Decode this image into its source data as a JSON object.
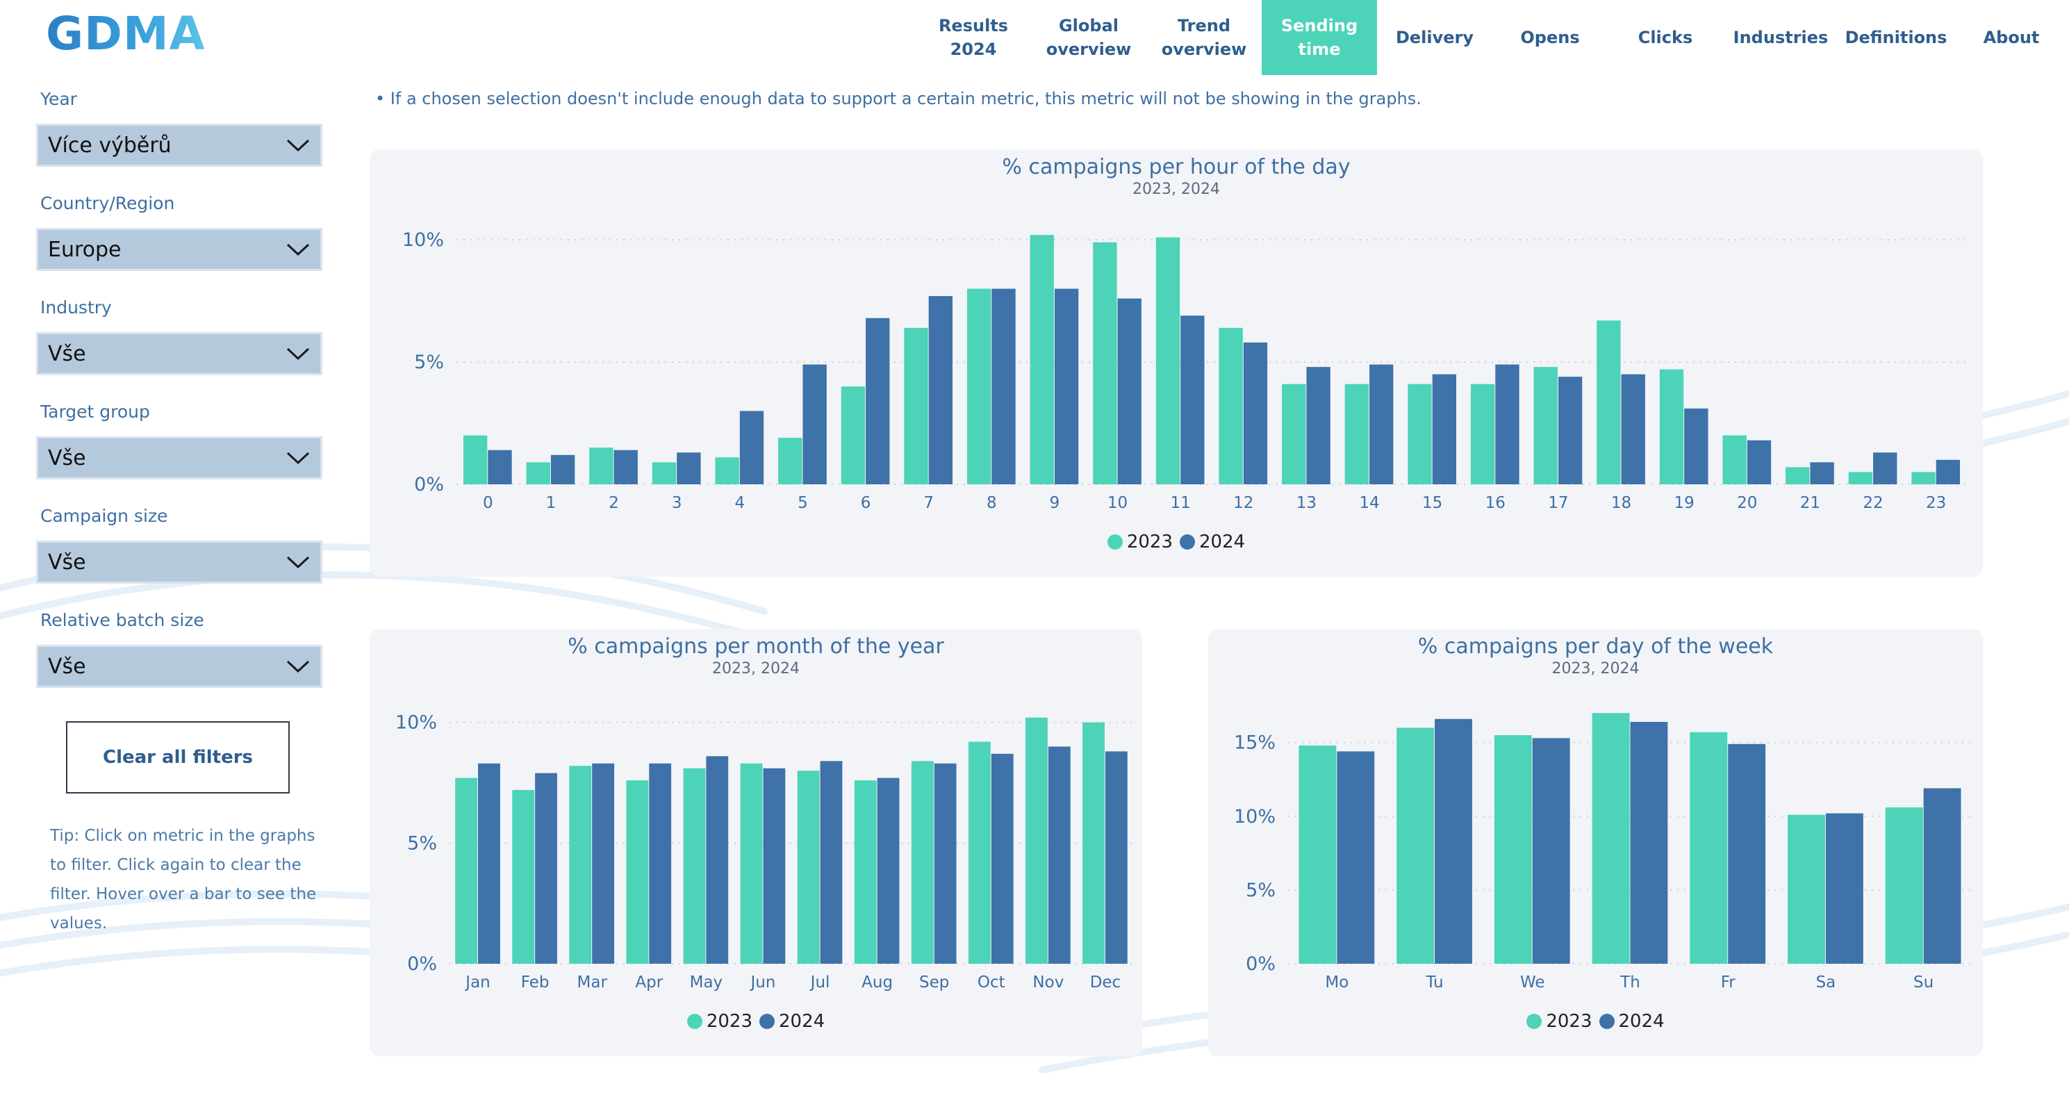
{
  "app": {
    "logo": "GDMA"
  },
  "nav": [
    {
      "label": "Results\n2024",
      "active": false
    },
    {
      "label": "Global\noverview",
      "active": false
    },
    {
      "label": "Trend\noverview",
      "active": false
    },
    {
      "label": "Sending\ntime",
      "active": true
    },
    {
      "label": "Delivery",
      "active": false
    },
    {
      "label": "Opens",
      "active": false
    },
    {
      "label": "Clicks",
      "active": false
    },
    {
      "label": "Industries",
      "active": false
    },
    {
      "label": "Definitions",
      "active": false
    },
    {
      "label": "About",
      "active": false
    }
  ],
  "filters": [
    {
      "label": "Year",
      "value": "Více výběrů"
    },
    {
      "label": "Country/Region",
      "value": "Europe"
    },
    {
      "label": "Industry",
      "value": "Vše"
    },
    {
      "label": "Target group",
      "value": "Vše"
    },
    {
      "label": "Campaign size",
      "value": "Vše"
    },
    {
      "label": "Relative batch size",
      "value": "Vše"
    }
  ],
  "clear_button": "Clear all filters",
  "tip": "Tip: Click on metric in the graphs to filter. Click again to clear the filter. Hover over a bar to see the values.",
  "note": "• If a chosen selection doesn't include enough data to support a certain metric, this metric will not be showing in the graphs.",
  "colors": {
    "series_2023": "#4cd3b8",
    "series_2024": "#3e72a8",
    "active_tab": "#4cd3b8"
  },
  "chart_data": [
    {
      "type": "bar",
      "title": "% campaigns per hour of the day",
      "subtitle": "2023, 2024",
      "categories": [
        "0",
        "1",
        "2",
        "3",
        "4",
        "5",
        "6",
        "7",
        "8",
        "9",
        "10",
        "11",
        "12",
        "13",
        "14",
        "15",
        "16",
        "17",
        "18",
        "19",
        "20",
        "21",
        "22",
        "23"
      ],
      "series": [
        {
          "name": "2023",
          "values": [
            2.0,
            0.9,
            1.5,
            0.9,
            1.1,
            1.9,
            4.0,
            6.4,
            8.0,
            10.2,
            9.9,
            10.1,
            6.4,
            4.1,
            4.1,
            4.1,
            4.1,
            4.8,
            6.7,
            4.7,
            2.0,
            0.7,
            0.5,
            0.5
          ]
        },
        {
          "name": "2024",
          "values": [
            1.4,
            1.2,
            1.4,
            1.3,
            3.0,
            4.9,
            6.8,
            7.7,
            8.0,
            8.0,
            7.6,
            6.9,
            5.8,
            4.8,
            4.9,
            4.5,
            4.9,
            4.4,
            4.5,
            3.1,
            1.8,
            0.9,
            1.3,
            1.0
          ]
        }
      ],
      "yticks": [
        "0%",
        "5%",
        "10%"
      ],
      "ylim": [
        0,
        11
      ]
    },
    {
      "type": "bar",
      "title": "% campaigns per month of the year",
      "subtitle": "2023, 2024",
      "categories": [
        "Jan",
        "Feb",
        "Mar",
        "Apr",
        "May",
        "Jun",
        "Jul",
        "Aug",
        "Sep",
        "Oct",
        "Nov",
        "Dec"
      ],
      "series": [
        {
          "name": "2023",
          "values": [
            7.7,
            7.2,
            8.2,
            7.6,
            8.1,
            8.3,
            8.0,
            7.6,
            8.4,
            9.2,
            10.2,
            10.0
          ]
        },
        {
          "name": "2024",
          "values": [
            8.3,
            7.9,
            8.3,
            8.3,
            8.6,
            8.1,
            8.4,
            7.7,
            8.3,
            8.7,
            9.0,
            8.8
          ]
        }
      ],
      "yticks": [
        "0%",
        "5%",
        "10%"
      ],
      "ylim": [
        0,
        11
      ]
    },
    {
      "type": "bar",
      "title": "% campaigns per day of the week",
      "subtitle": "2023, 2024",
      "categories": [
        "Mo",
        "Tu",
        "We",
        "Th",
        "Fr",
        "Sa",
        "Su"
      ],
      "series": [
        {
          "name": "2023",
          "values": [
            14.8,
            16.0,
            15.5,
            17.0,
            15.7,
            10.1,
            10.6
          ]
        },
        {
          "name": "2024",
          "values": [
            14.4,
            16.6,
            15.3,
            16.4,
            14.9,
            10.2,
            11.9
          ]
        }
      ],
      "yticks": [
        "0%",
        "5%",
        "10%",
        "15%"
      ],
      "ylim": [
        0,
        18
      ]
    }
  ]
}
